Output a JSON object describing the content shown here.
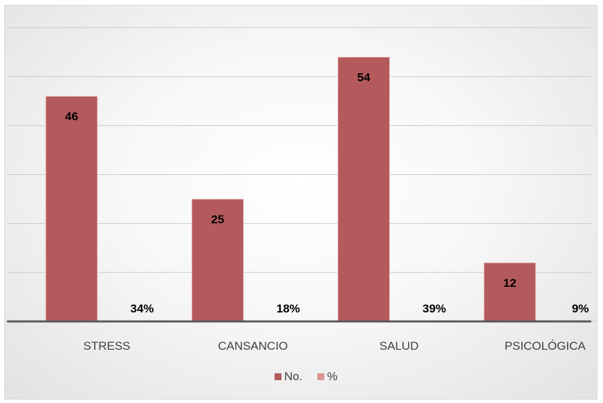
{
  "chart_data": {
    "type": "bar",
    "categories": [
      "STRESS",
      "CANSANCIO",
      "SALUD",
      "PSICOLÓGICA"
    ],
    "series": [
      {
        "name": "No.",
        "values": [
          46,
          25,
          54,
          12
        ],
        "labels": [
          "46",
          "25",
          "54",
          "12"
        ],
        "color": "#b55a5c"
      },
      {
        "name": "%",
        "values": [
          34,
          18,
          39,
          9
        ],
        "labels": [
          "34%",
          "18%",
          "39%",
          "9%"
        ],
        "color": "#d99594"
      }
    ],
    "title": "",
    "xlabel": "",
    "ylabel": "",
    "ylim": [
      0,
      60
    ],
    "grid": true,
    "legend": "bottom"
  }
}
